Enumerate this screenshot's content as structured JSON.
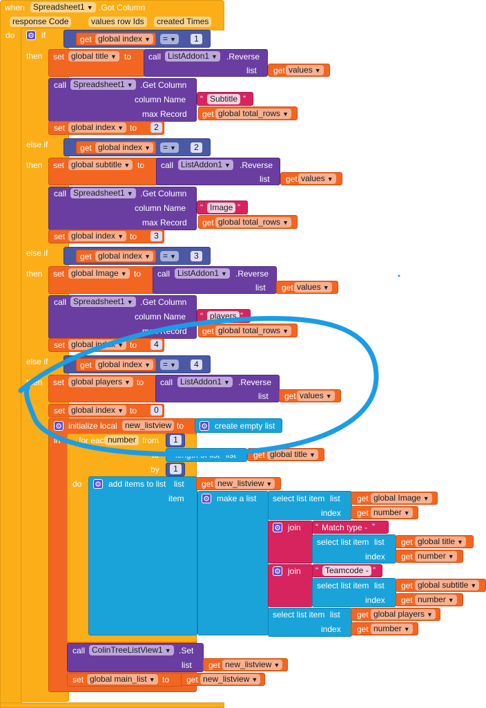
{
  "event": {
    "when": "when",
    "component": "Spreadsheet1",
    "event_name": ".Got Column",
    "params": [
      "response Code",
      "values",
      "row Ids",
      "created Times"
    ],
    "do": "do"
  },
  "words": {
    "if": "if",
    "then": "then",
    "else_if": "else if",
    "set": "set",
    "to": "to",
    "get": "get",
    "call": "call",
    "list": "list",
    "column_name": "column Name",
    "max_record": "max Record",
    "get_column": ".Get Column",
    "reverse": ".Reverse",
    "eq": "=",
    "initialize_local": "initialize local",
    "in": "in",
    "for_each": "for each",
    "from": "from",
    "to2": "to",
    "by": "by",
    "do": "do",
    "length_of_list": "length of list",
    "add_items": "add items to list",
    "item": "item",
    "make_list": "make a list",
    "select_item": "select list item",
    "index": "index",
    "join": "join",
    "create_empty": "create empty list",
    "set_method": ".Set",
    "quote_open": "“",
    "quote_close": "”"
  },
  "vars": {
    "global_index": "global index",
    "global_title": "global title",
    "global_subtitle": "global subtitle",
    "global_image": "global Image",
    "global_players": "global players",
    "global_total_rows": "global total_rows",
    "values": "values",
    "new_listview": "new_listview",
    "number": "number",
    "global_main_list": "global main_list"
  },
  "components": {
    "listaddon": "ListAddon1",
    "spreadsheet": "Spreadsheet1",
    "colintree": "ColinTreeListView1"
  },
  "strings": {
    "subtitle": "Subtitle",
    "image": "Image",
    "players": "players",
    "match_type": "Match type - ",
    "teamcode": "Teamcode - "
  },
  "numbers": {
    "n0": "0",
    "n1": "1",
    "n2": "2",
    "n3": "3",
    "n4": "4"
  },
  "annotation": {
    "color": "#1a9de6"
  },
  "colors": {
    "event": "#fbae17",
    "variable": "#f26622",
    "procedure": "#6a3ea1",
    "math": "#4b59a5",
    "text": "#d8245e",
    "list": "#1aa3d9"
  }
}
